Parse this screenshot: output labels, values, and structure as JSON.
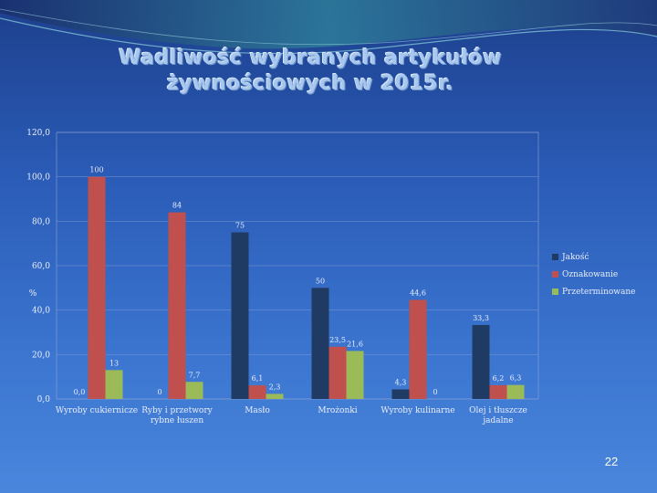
{
  "slide": {
    "title_line1": "Wadliwość wybranych artykułów",
    "title_line2": "żywnościowych w 2015r.",
    "page_number": "22"
  },
  "colors": {
    "Jakość": "#1f3a63",
    "Oznakowanie": "#c0504d",
    "Przeterminowane": "#9bbb59"
  },
  "chart_data": {
    "type": "bar",
    "ylabel": "%",
    "ylim": [
      0,
      120
    ],
    "yticks": [
      "0,0",
      "20,0",
      "40,0",
      "60,0",
      "80,0",
      "100,0",
      "120,0"
    ],
    "grid": true,
    "legend_position": "right",
    "categories": [
      [
        "Wyroby cukiernicze"
      ],
      [
        "Ryby i przetwory",
        "rybne łuszen"
      ],
      [
        "Masło"
      ],
      [
        "Mrożonki"
      ],
      [
        "Wyroby kulinarne"
      ],
      [
        "Olej i tłuszcze",
        "jadalne"
      ]
    ],
    "series": [
      {
        "name": "Jakość",
        "values": [
          0.0,
          0,
          75,
          50,
          4.3,
          33.3
        ],
        "labels": [
          "0,0",
          "0",
          "75",
          "50",
          "4,3",
          "33,3"
        ]
      },
      {
        "name": "Oznakowanie",
        "values": [
          100,
          84,
          6.1,
          23.5,
          44.6,
          6.2
        ],
        "labels": [
          "100",
          "84",
          "6,1",
          "23,5",
          "44,6",
          "6,2"
        ]
      },
      {
        "name": "Przeterminowane",
        "values": [
          13,
          7.7,
          2.3,
          21.6,
          0,
          6.3
        ],
        "labels": [
          "13",
          "7,7",
          "2,3",
          "21,6",
          "0",
          "6,3"
        ]
      }
    ]
  }
}
